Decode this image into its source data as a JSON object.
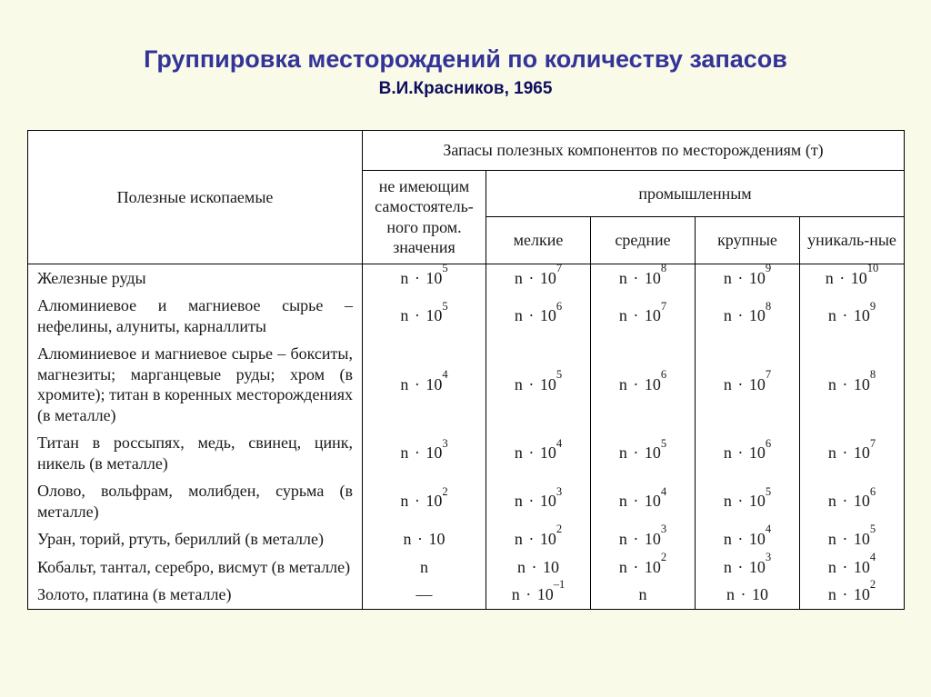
{
  "title": "Группировка месторождений по количеству запасов",
  "subtitle": "В.И.Красников, 1965",
  "headers": {
    "material": "Полезные ископаемые",
    "reserves_top": "Запасы полезных компонентов по месторождениям (т)",
    "no_industrial": "не имеющим самостоятель-ного пром. значения",
    "industrial": "промышленным",
    "small": "мелкие",
    "medium": "средние",
    "large": "крупные",
    "unique": "уникаль-ные"
  },
  "rows": [
    {
      "material": "Железные руды",
      "cells": [
        "n · 10<sup>5</sup>",
        "n · 10<sup>7</sup>",
        "n · 10<sup>8</sup>",
        "n · 10<sup>9</sup>",
        "n · 10<sup>10</sup>"
      ]
    },
    {
      "material": "Алюминиевое и магниевое сырье – нефелины, алуниты, карналлиты",
      "cells": [
        "n · 10<sup>5</sup>",
        "n · 10<sup>6</sup>",
        "n · 10<sup>7</sup>",
        "n · 10<sup>8</sup>",
        "n · 10<sup>9</sup>"
      ]
    },
    {
      "material": "Алюминиевое и магниевое сырье – бокситы, магнезиты; марганцевые руды; хром (в хромите); титан в коренных месторождениях (в металле)",
      "cells": [
        "n · 10<sup>4</sup>",
        "n · 10<sup>5</sup>",
        "n · 10<sup>6</sup>",
        "n · 10<sup>7</sup>",
        "n · 10<sup>8</sup>"
      ]
    },
    {
      "material": "Титан в россыпях, медь, свинец, цинк, никель (в металле)",
      "cells": [
        "n · 10<sup>3</sup>",
        "n · 10<sup>4</sup>",
        "n · 10<sup>5</sup>",
        "n · 10<sup>6</sup>",
        "n · 10<sup>7</sup>"
      ]
    },
    {
      "material": "Олово, вольфрам, молибден, сурьма (в металле)",
      "cells": [
        "n · 10<sup>2</sup>",
        "n · 10<sup>3</sup>",
        "n · 10<sup>4</sup>",
        "n · 10<sup>5</sup>",
        "n · 10<sup>6</sup>"
      ]
    },
    {
      "material": "Уран, торий, ртуть, бериллий (в металле)",
      "cells": [
        "n · 10",
        "n · 10<sup>2</sup>",
        "n · 10<sup>3</sup>",
        "n · 10<sup>4</sup>",
        "n · 10<sup>5</sup>"
      ]
    },
    {
      "material": "Кобальт, тантал, серебро, висмут (в металле)",
      "cells": [
        "n",
        "n · 10",
        "n · 10<sup>2</sup>",
        "n · 10<sup>3</sup>",
        "n · 10<sup>4</sup>"
      ]
    },
    {
      "material": "Золото, платина (в металле)",
      "cells": [
        "—",
        "n · 10<sup>–1</sup>",
        "n",
        "n · 10",
        "n · 10<sup>2</sup>"
      ]
    }
  ],
  "styling": {
    "page_bg": "#fafae8",
    "table_bg": "#ffffff",
    "border_color": "#000000",
    "title_color": "#333399",
    "title_font": "Arial",
    "title_fontsize": 27,
    "subtitle_fontsize": 19,
    "body_font": "Times New Roman",
    "body_fontsize": 18
  }
}
